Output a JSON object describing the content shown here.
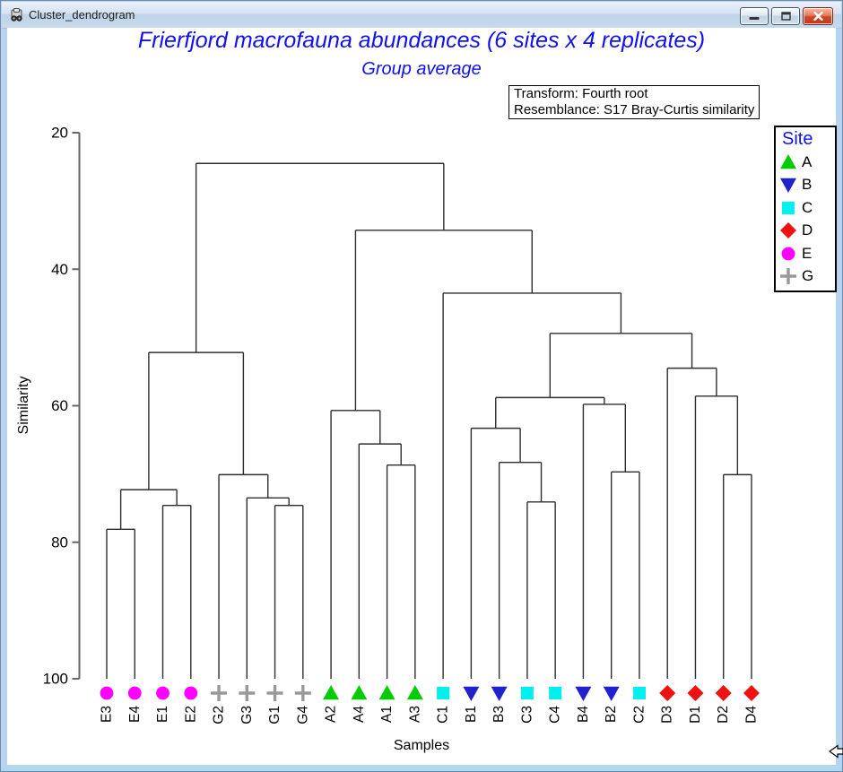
{
  "window": {
    "title": "Cluster_dendrogram",
    "buttons": {
      "minimize": "minimize",
      "maximize": "maximize",
      "close": "close"
    },
    "icons": {
      "window_icon": "primer-dendrogram-icon",
      "cursor": "left-arrow-cursor"
    }
  },
  "colors": {
    "title_blue": "#1111ee",
    "line": "#2e2e2e",
    "axis": "#666666"
  },
  "legend": {
    "title": "Site",
    "entries": [
      {
        "label": "A"
      },
      {
        "label": "B"
      },
      {
        "label": "C"
      },
      {
        "label": "D"
      },
      {
        "label": "E"
      },
      {
        "label": "G"
      }
    ]
  },
  "chart_data": {
    "type": "dendrogram",
    "title": "Frierfjord macrofauna abundances (6 sites x 4 replicates)",
    "subtitle": "Group average",
    "annotations": [
      "Transform: Fourth root",
      "Resemblance: S17 Bray-Curtis similarity"
    ],
    "axis": {
      "ylabel": "Similarity",
      "xlabel": "Samples",
      "yticks": [
        20,
        40,
        60,
        80,
        100
      ],
      "y_top": 20,
      "y_bottom": 100,
      "grid": false
    },
    "leaf_order": [
      "E3",
      "E4",
      "E1",
      "E2",
      "G2",
      "G3",
      "G1",
      "G4",
      "A2",
      "A4",
      "A1",
      "A3",
      "C1",
      "B1",
      "B3",
      "C3",
      "C4",
      "B4",
      "B2",
      "C2",
      "D3",
      "D1",
      "D2",
      "D4"
    ],
    "site_styles": {
      "A": {
        "symbol": "triangle-up",
        "color": "#00cc00"
      },
      "B": {
        "symbol": "triangle-down",
        "color": "#2222cc"
      },
      "C": {
        "symbol": "square",
        "color": "#00f0f0"
      },
      "D": {
        "symbol": "diamond",
        "color": "#ee1111"
      },
      "E": {
        "symbol": "circle",
        "color": "#ff00ff"
      },
      "G": {
        "symbol": "plus",
        "color": "#999999"
      }
    },
    "merges": [
      {
        "members": [
          "E3",
          "E4"
        ],
        "similarity": 78.1
      },
      {
        "members": [
          "E1",
          "E2"
        ],
        "similarity": 74.6
      },
      {
        "members": [
          "(E3,E4)",
          "(E1,E2)"
        ],
        "similarity": 72.3
      },
      {
        "members": [
          "G1",
          "G4"
        ],
        "similarity": 74.6
      },
      {
        "members": [
          "G3",
          "(G1,G4)"
        ],
        "similarity": 73.5
      },
      {
        "members": [
          "G2",
          "(G3,G1,G4)"
        ],
        "similarity": 70.1
      },
      {
        "members": [
          "E-cluster",
          "G-cluster"
        ],
        "similarity": 52.2
      },
      {
        "members": [
          "A1",
          "A3"
        ],
        "similarity": 68.7
      },
      {
        "members": [
          "A4",
          "(A1,A3)"
        ],
        "similarity": 65.6
      },
      {
        "members": [
          "A2",
          "(A4,A1,A3)"
        ],
        "similarity": 60.7
      },
      {
        "members": [
          "C3",
          "C4"
        ],
        "similarity": 74.1
      },
      {
        "members": [
          "B3",
          "(C3,C4)"
        ],
        "similarity": 68.3
      },
      {
        "members": [
          "B1",
          "(B3,C3,C4)"
        ],
        "similarity": 63.3
      },
      {
        "members": [
          "B2",
          "C2"
        ],
        "similarity": 69.7
      },
      {
        "members": [
          "B4",
          "(B2,C2)"
        ],
        "similarity": 59.8
      },
      {
        "members": [
          "(B1,B3,C3,C4)",
          "(B4,B2,C2)"
        ],
        "similarity": 58.8
      },
      {
        "members": [
          "D2",
          "D4"
        ],
        "similarity": 70.1
      },
      {
        "members": [
          "D1",
          "(D2,D4)"
        ],
        "similarity": 58.6
      },
      {
        "members": [
          "D3",
          "(D1,D2,D4)"
        ],
        "similarity": 54.5
      },
      {
        "members": [
          "BC-cluster",
          "D-cluster"
        ],
        "similarity": 49.4
      },
      {
        "members": [
          "C1",
          "(BC,D)"
        ],
        "similarity": 43.5
      },
      {
        "members": [
          "A-cluster",
          "(C1,BC,D)"
        ],
        "similarity": 34.3
      },
      {
        "members": [
          "EG-cluster",
          "rest"
        ],
        "similarity": 24.5
      }
    ],
    "tree": {
      "sim": 24.5,
      "children": [
        {
          "sim": 52.2,
          "children": [
            {
              "sim": 72.3,
              "children": [
                {
                  "sim": 78.1,
                  "children": [
                    {
                      "leaf": "E3",
                      "site": "E"
                    },
                    {
                      "leaf": "E4",
                      "site": "E"
                    }
                  ]
                },
                {
                  "sim": 74.6,
                  "children": [
                    {
                      "leaf": "E1",
                      "site": "E"
                    },
                    {
                      "leaf": "E2",
                      "site": "E"
                    }
                  ]
                }
              ]
            },
            {
              "sim": 70.1,
              "children": [
                {
                  "leaf": "G2",
                  "site": "G"
                },
                {
                  "sim": 73.5,
                  "children": [
                    {
                      "leaf": "G3",
                      "site": "G"
                    },
                    {
                      "sim": 74.6,
                      "children": [
                        {
                          "leaf": "G1",
                          "site": "G"
                        },
                        {
                          "leaf": "G4",
                          "site": "G"
                        }
                      ]
                    }
                  ]
                }
              ]
            }
          ]
        },
        {
          "sim": 34.3,
          "children": [
            {
              "sim": 60.7,
              "children": [
                {
                  "leaf": "A2",
                  "site": "A"
                },
                {
                  "sim": 65.6,
                  "children": [
                    {
                      "leaf": "A4",
                      "site": "A"
                    },
                    {
                      "sim": 68.7,
                      "children": [
                        {
                          "leaf": "A1",
                          "site": "A"
                        },
                        {
                          "leaf": "A3",
                          "site": "A"
                        }
                      ]
                    }
                  ]
                }
              ]
            },
            {
              "sim": 43.5,
              "children": [
                {
                  "leaf": "C1",
                  "site": "C"
                },
                {
                  "sim": 49.4,
                  "children": [
                    {
                      "sim": 58.8,
                      "children": [
                        {
                          "sim": 63.3,
                          "children": [
                            {
                              "leaf": "B1",
                              "site": "B"
                            },
                            {
                              "sim": 68.3,
                              "children": [
                                {
                                  "leaf": "B3",
                                  "site": "B"
                                },
                                {
                                  "sim": 74.1,
                                  "children": [
                                    {
                                      "leaf": "C3",
                                      "site": "C"
                                    },
                                    {
                                      "leaf": "C4",
                                      "site": "C"
                                    }
                                  ]
                                }
                              ]
                            }
                          ]
                        },
                        {
                          "sim": 59.8,
                          "children": [
                            {
                              "leaf": "B4",
                              "site": "B"
                            },
                            {
                              "sim": 69.7,
                              "children": [
                                {
                                  "leaf": "B2",
                                  "site": "B"
                                },
                                {
                                  "leaf": "C2",
                                  "site": "C"
                                }
                              ]
                            }
                          ]
                        }
                      ]
                    },
                    {
                      "sim": 54.5,
                      "children": [
                        {
                          "leaf": "D3",
                          "site": "D"
                        },
                        {
                          "sim": 58.6,
                          "children": [
                            {
                              "leaf": "D1",
                              "site": "D"
                            },
                            {
                              "sim": 70.1,
                              "children": [
                                {
                                  "leaf": "D2",
                                  "site": "D"
                                },
                                {
                                  "leaf": "D4",
                                  "site": "D"
                                }
                              ]
                            }
                          ]
                        }
                      ]
                    }
                  ]
                }
              ]
            }
          ]
        }
      ]
    }
  }
}
